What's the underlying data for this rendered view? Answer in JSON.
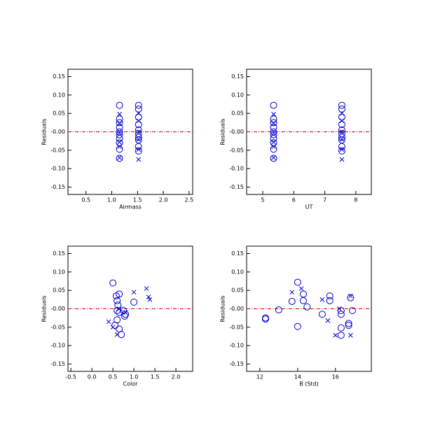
{
  "chart_data": [
    {
      "type": "scatter",
      "xlabel": "Airmass",
      "ylabel": "Residuals",
      "xlim": [
        0.15,
        2.57
      ],
      "ylim": [
        -0.17,
        0.17
      ],
      "xticks": [
        0.5,
        {
          "value": 1,
          "label": "1.0"
        },
        1.5,
        {
          "value": 2,
          "label": "2.0"
        },
        2.5
      ],
      "yticks": [
        -0.15,
        {
          "value": -0.1,
          "label": "-0.10"
        },
        -0.05,
        {
          "value": 0,
          "label": "-0.00"
        },
        0.05,
        {
          "value": 0.1,
          "label": "0.10"
        },
        0.15
      ],
      "hline": 0,
      "hline_color": "#cc0000",
      "series": [
        {
          "marker": "circle",
          "color": "#0000cc",
          "x": [
            1.15,
            1.15,
            1.15,
            1.15,
            1.15,
            1.15,
            1.15,
            1.15,
            1.15,
            1.15,
            1.52,
            1.52,
            1.52,
            1.52,
            1.52,
            1.52,
            1.52,
            1.52,
            1.52,
            1.52
          ],
          "values": [
            0.072,
            0.035,
            0.025,
            0.012,
            0,
            -0.008,
            -0.018,
            -0.03,
            -0.047,
            -0.072,
            0.072,
            0.062,
            0.04,
            0.02,
            0.005,
            -0.005,
            -0.015,
            -0.022,
            -0.04,
            -0.052
          ]
        },
        {
          "marker": "x",
          "color": "#0000cc",
          "x": [
            1.15,
            1.15,
            1.15,
            1.15,
            1.15,
            1.15,
            1.52,
            1.52,
            1.52,
            1.52,
            1.52,
            1.52
          ],
          "values": [
            0.048,
            0.022,
            -0.003,
            -0.028,
            -0.04,
            -0.07,
            0.05,
            0.03,
            0,
            -0.02,
            -0.048,
            -0.075
          ]
        }
      ]
    },
    {
      "type": "scatter",
      "xlabel": "UT",
      "ylabel": "Residuals",
      "xlim": [
        4.48,
        8.5
      ],
      "ylim": [
        -0.17,
        0.17
      ],
      "xticks": [
        5,
        6,
        7,
        8
      ],
      "yticks": [
        -0.15,
        {
          "value": -0.1,
          "label": "-0.10"
        },
        -0.05,
        {
          "value": 0,
          "label": "-0.00"
        },
        0.05,
        {
          "value": 0.1,
          "label": "0.10"
        },
        0.15
      ],
      "hline": 0,
      "hline_color": "#cc0000",
      "series": [
        {
          "marker": "circle",
          "color": "#0000cc",
          "x": [
            5.35,
            5.35,
            5.35,
            5.35,
            5.35,
            5.35,
            5.35,
            5.35,
            5.35,
            5.35,
            7.55,
            7.55,
            7.55,
            7.55,
            7.55,
            7.55,
            7.55,
            7.55,
            7.55,
            7.55
          ],
          "values": [
            0.072,
            0.035,
            0.025,
            0.012,
            0,
            -0.008,
            -0.018,
            -0.03,
            -0.047,
            -0.072,
            0.072,
            0.062,
            0.04,
            0.02,
            0.005,
            -0.005,
            -0.015,
            -0.022,
            -0.04,
            -0.052
          ]
        },
        {
          "marker": "x",
          "color": "#0000cc",
          "x": [
            5.35,
            5.35,
            5.35,
            5.35,
            5.35,
            5.35,
            7.55,
            7.55,
            7.55,
            7.55,
            7.55,
            7.55
          ],
          "values": [
            0.048,
            0.022,
            -0.003,
            -0.028,
            -0.04,
            -0.07,
            0.05,
            0.03,
            0,
            -0.02,
            -0.048,
            -0.075
          ]
        }
      ]
    },
    {
      "type": "scatter",
      "xlabel": "Color",
      "ylabel": "Residuals",
      "xlim": [
        -0.57,
        2.4
      ],
      "ylim": [
        -0.17,
        0.17
      ],
      "xticks": [
        -0.5,
        {
          "value": 0,
          "label": "0.0"
        },
        0.5,
        {
          "value": 1,
          "label": "1.0"
        },
        1.5,
        {
          "value": 2,
          "label": "2.0"
        }
      ],
      "yticks": [
        -0.15,
        {
          "value": -0.1,
          "label": "-0.10"
        },
        -0.05,
        {
          "value": 0,
          "label": "-0.00"
        },
        0.05,
        {
          "value": 0.1,
          "label": "0.10"
        },
        0.15
      ],
      "hline": 0,
      "hline_color": "#cc0000",
      "series": [
        {
          "marker": "circle",
          "color": "#0000cc",
          "x": [
            0.5,
            0.58,
            0.6,
            0.65,
            0.62,
            0.6,
            0.65,
            0.6,
            0.55,
            0.65,
            0.7,
            0.75,
            0.8,
            0.78,
            1.0
          ],
          "values": [
            0.07,
            0.035,
            0.022,
            0.04,
            0.01,
            -0.005,
            -0.01,
            -0.03,
            -0.045,
            -0.055,
            -0.07,
            -0.005,
            -0.015,
            -0.02,
            0.018
          ]
        },
        {
          "marker": "x",
          "color": "#0000cc",
          "x": [
            0.4,
            0.5,
            0.6,
            0.65,
            0.8,
            1.0,
            1.3,
            1.35,
            1.38
          ],
          "values": [
            -0.035,
            -0.05,
            -0.07,
            0,
            -0.01,
            0.045,
            0.055,
            0.032,
            0.025
          ]
        }
      ]
    },
    {
      "type": "scatter",
      "xlabel": "B (Std)",
      "ylabel": "Residuals",
      "xlim": [
        11.3,
        17.9
      ],
      "ylim": [
        -0.17,
        0.17
      ],
      "xticks": [
        12,
        14,
        16
      ],
      "yticks": [
        -0.15,
        {
          "value": -0.1,
          "label": "-0.10"
        },
        -0.05,
        {
          "value": 0,
          "label": "-0.00"
        },
        0.05,
        {
          "value": 0.1,
          "label": "0.10"
        },
        0.15
      ],
      "hline": 0,
      "hline_color": "#cc0000",
      "series": [
        {
          "marker": "circle",
          "color": "#0000cc",
          "x": [
            12.3,
            12.3,
            13.0,
            13.7,
            14.0,
            14.0,
            14.3,
            14.3,
            14.5,
            15.3,
            15.7,
            15.7,
            16.3,
            16.3,
            16.3,
            16.3,
            16.7,
            16.7,
            16.8,
            16.9
          ],
          "values": [
            -0.025,
            -0.028,
            -0.003,
            0.02,
            0.072,
            -0.048,
            0.04,
            0.022,
            0.005,
            -0.015,
            0.035,
            0.022,
            -0.005,
            -0.015,
            -0.052,
            -0.072,
            -0.045,
            -0.04,
            0.03,
            -0.005
          ]
        },
        {
          "marker": "x",
          "color": "#0000cc",
          "x": [
            13.7,
            14.2,
            15.3,
            15.6,
            16.0,
            16.8,
            16.8,
            16.2
          ],
          "values": [
            0.045,
            0.055,
            0.025,
            -0.032,
            -0.072,
            0.035,
            -0.072,
            0
          ]
        }
      ]
    }
  ]
}
